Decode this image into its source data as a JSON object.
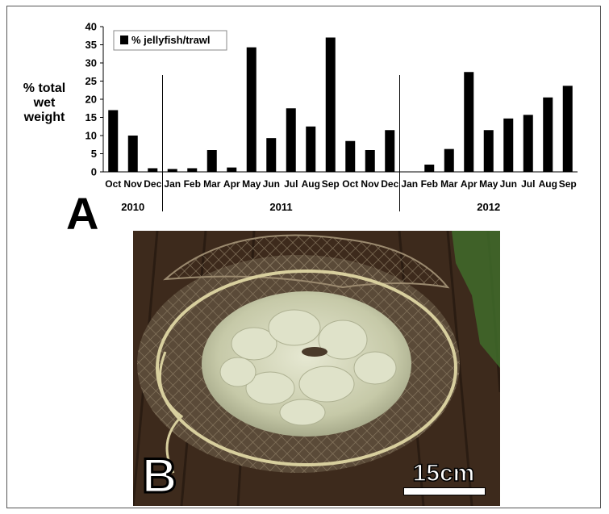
{
  "chart_data": {
    "type": "bar",
    "ylabel": [
      "% total",
      "wet",
      "weight"
    ],
    "legend": "% jellyfish/trawl",
    "legend_position": "top-left",
    "ylim": [
      0,
      40
    ],
    "yticks": [
      0,
      5,
      10,
      15,
      20,
      25,
      30,
      35,
      40
    ],
    "grid": false,
    "categories": [
      "Oct",
      "Nov",
      "Dec",
      "Jan",
      "Feb",
      "Mar",
      "Apr",
      "May",
      "Jun",
      "Jul",
      "Aug",
      "Sep",
      "Oct",
      "Nov",
      "Dec",
      "Jan",
      "Feb",
      "Mar",
      "Apr",
      "May",
      "Jun",
      "Jul",
      "Aug",
      "Sep"
    ],
    "values": [
      17,
      10,
      1,
      0.8,
      1,
      6,
      1.2,
      34.3,
      9.3,
      17.5,
      12.5,
      37,
      8.5,
      6,
      11.5,
      0,
      2,
      6.3,
      27.5,
      11.5,
      14.7,
      15.7,
      20.5,
      23.7
    ],
    "series": [
      {
        "name": "% jellyfish/trawl",
        "color": "#000000"
      }
    ],
    "years": [
      {
        "label": "2010",
        "start": 0,
        "end": 2
      },
      {
        "label": "2011",
        "start": 3,
        "end": 14
      },
      {
        "label": "2012",
        "start": 15,
        "end": 23
      }
    ]
  },
  "panels": {
    "a_label": "A",
    "b_label": "B"
  },
  "photo": {
    "scale_label": "15cm",
    "colors": {
      "deck": "#3d2a1c",
      "net": "#6b5a45",
      "jellyfish": "#cfd2b4",
      "moss": "#3f6b2a"
    }
  }
}
